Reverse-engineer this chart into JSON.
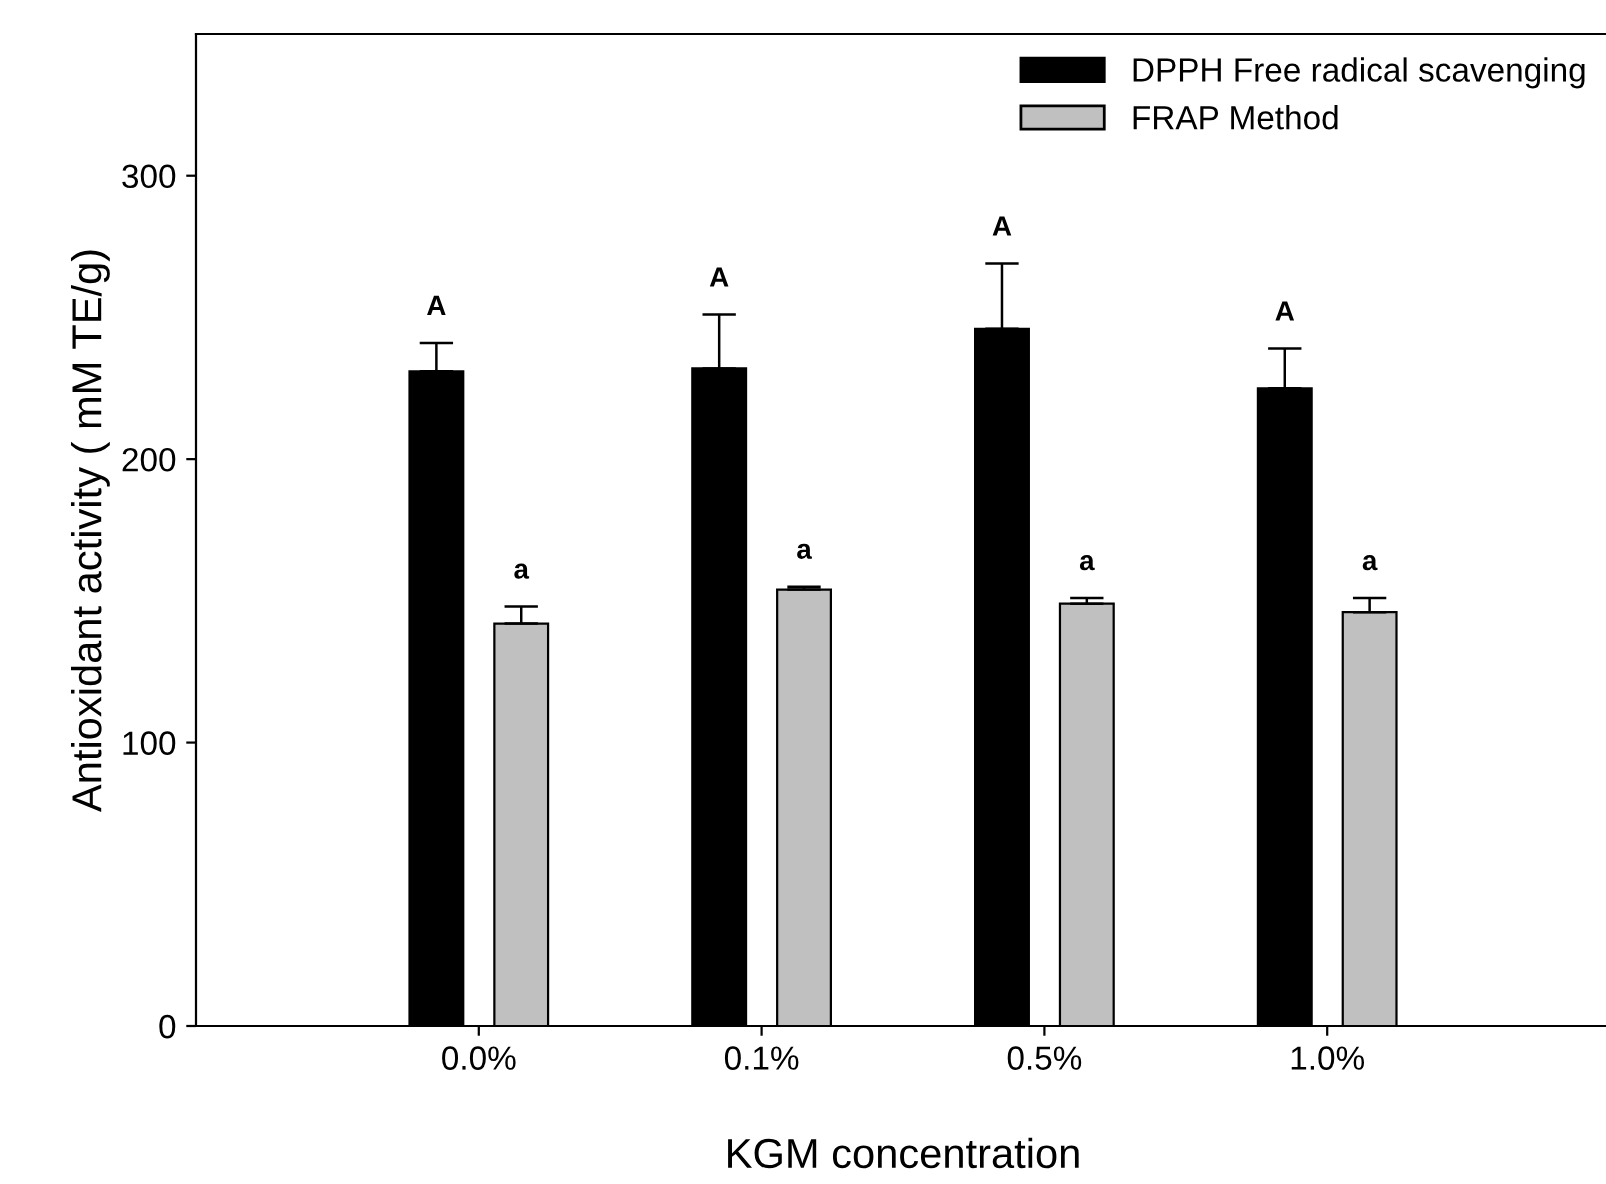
{
  "chart_data": {
    "type": "bar",
    "xlabel": "KGM concentration",
    "ylabel": "Antioxidant activity ( mM TE/g)",
    "categories": [
      "0.0%",
      "0.1%",
      "0.5%",
      "1.0%"
    ],
    "series": [
      {
        "name": "DPPH Free radical scavenging",
        "color": "#000000",
        "values": [
          231,
          232,
          246,
          225
        ],
        "errors": [
          10,
          19,
          23,
          14
        ]
      },
      {
        "name": "FRAP Method",
        "color": "#c0c0c0",
        "values": [
          142,
          154,
          149,
          146
        ],
        "errors": [
          6,
          1,
          2,
          5
        ]
      }
    ],
    "annotations": [
      "A",
      "A",
      "A",
      "A",
      "a",
      "a",
      "a",
      "a"
    ],
    "ylim": [
      0,
      350
    ],
    "yticks": [
      0,
      100,
      200,
      300
    ],
    "grid": false,
    "legend": "top right"
  }
}
